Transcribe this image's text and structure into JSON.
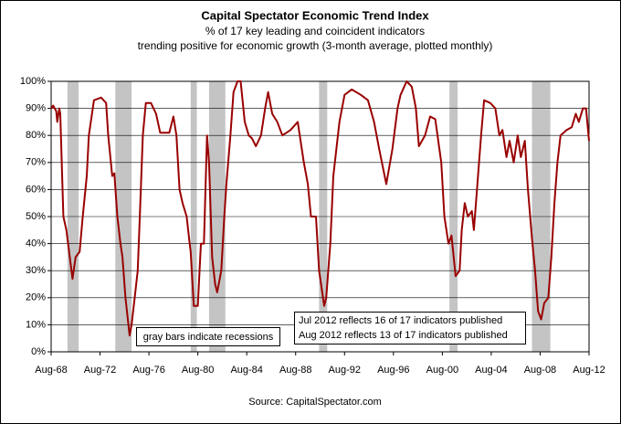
{
  "chart_data": {
    "type": "line",
    "title": "Capital Spectator Economic Trend Index",
    "subtitle": [
      "% of 17 key leading and coincident indicators",
      "trending positive for economic growth (3-month average, plotted monthly)"
    ],
    "source": "Source: CapitalSpectator.com",
    "annotations": [
      "gray bars indicate recessions",
      "Jul 2012 reflects 16 of 17 indicators published",
      "Aug 2012 reflects 13 of 17 indicators published"
    ],
    "color": "#990000",
    "recession_color": "#c4c4c4",
    "grid": true,
    "recessions": [
      [
        "1969-12",
        "1970-11"
      ],
      [
        "1973-11",
        "1975-03"
      ],
      [
        "1980-01",
        "1980-07"
      ],
      [
        "1981-07",
        "1982-11"
      ],
      [
        "1990-07",
        "1991-03"
      ],
      [
        "2001-03",
        "2001-11"
      ],
      [
        "2007-12",
        "2009-06"
      ]
    ],
    "x": [
      "1968-08",
      "1968-10",
      "1969-01",
      "1969-02",
      "1969-04",
      "1969-05",
      "1969-08",
      "1969-11",
      "1970-05",
      "1970-08",
      "1970-12",
      "1971-03",
      "1971-07",
      "1971-09",
      "1972-02",
      "1972-09",
      "1973-02",
      "1973-04",
      "1973-08",
      "1973-10",
      "1974-01",
      "1974-04",
      "1974-06",
      "1974-09",
      "1975-01",
      "1975-03",
      "1975-06",
      "1975-09",
      "1975-11",
      "1976-02",
      "1976-05",
      "1976-10",
      "1977-03",
      "1977-07",
      "1978-04",
      "1978-08",
      "1978-11",
      "1979-02",
      "1979-05",
      "1979-09",
      "1979-12",
      "1980-01",
      "1980-04",
      "1980-08",
      "1980-11",
      "1981-02",
      "1981-05",
      "1981-07",
      "1981-10",
      "1982-01",
      "1982-03",
      "1982-07",
      "1982-10",
      "1982-12",
      "1983-04",
      "1983-07",
      "1983-11",
      "1984-02",
      "1984-06",
      "1984-10",
      "1985-01",
      "1985-05",
      "1985-10",
      "1986-02",
      "1986-05",
      "1986-09",
      "1987-02",
      "1987-07",
      "1988-03",
      "1988-10",
      "1989-04",
      "1989-08",
      "1989-11",
      "1990-04",
      "1990-07",
      "1990-12",
      "1991-02",
      "1991-06",
      "1991-09",
      "1992-03",
      "1992-08",
      "1993-03",
      "1993-12",
      "1994-07",
      "1995-01",
      "1995-06",
      "1996-01",
      "1996-07",
      "1996-12",
      "1997-03",
      "1997-09",
      "1998-02",
      "1998-06",
      "1998-09",
      "1999-03",
      "1999-08",
      "2000-01",
      "2000-07",
      "2000-10",
      "2001-02",
      "2001-05",
      "2001-09",
      "2002-01",
      "2002-03",
      "2002-06",
      "2002-09",
      "2003-01",
      "2003-03",
      "2003-06",
      "2003-10",
      "2004-01",
      "2004-07",
      "2004-12",
      "2005-04",
      "2005-07",
      "2005-11",
      "2006-02",
      "2006-06",
      "2006-10",
      "2007-01",
      "2007-05",
      "2007-08",
      "2007-12",
      "2008-03",
      "2008-06",
      "2008-09",
      "2008-12",
      "2009-04",
      "2009-07",
      "2009-10",
      "2010-01",
      "2010-04",
      "2010-10",
      "2011-03",
      "2011-07",
      "2011-10",
      "2012-02",
      "2012-05",
      "2012-08"
    ],
    "values": [
      90,
      91,
      89,
      85,
      90,
      88,
      50,
      45,
      27,
      35,
      37,
      50,
      65,
      80,
      93,
      94,
      92,
      80,
      65,
      66,
      50,
      40,
      35,
      20,
      6,
      10,
      20,
      30,
      50,
      80,
      92,
      92,
      88,
      81,
      81,
      87,
      80,
      60,
      55,
      50,
      40,
      37,
      17,
      17,
      40,
      40,
      80,
      70,
      35,
      25,
      22,
      30,
      50,
      62,
      80,
      96,
      100,
      100,
      85,
      80,
      79,
      76,
      80,
      90,
      96,
      88,
      85,
      80,
      82,
      85,
      70,
      62,
      50,
      50,
      30,
      17,
      20,
      40,
      65,
      85,
      95,
      97,
      95,
      93,
      85,
      75,
      62,
      75,
      90,
      95,
      100,
      98,
      90,
      76,
      80,
      87,
      86,
      70,
      50,
      40,
      43,
      28,
      30,
      45,
      55,
      50,
      52,
      45,
      60,
      80,
      93,
      92,
      90,
      80,
      82,
      72,
      78,
      70,
      80,
      72,
      78,
      60,
      42,
      30,
      15,
      12,
      18,
      20,
      35,
      55,
      70,
      80,
      82,
      83,
      88,
      85,
      90,
      90,
      78
    ],
    "xlim": [
      "1968-08",
      "2012-08"
    ],
    "xticks": [
      {
        "value": "1968-08",
        "label": "Aug-68"
      },
      {
        "value": "1972-08",
        "label": "Aug-72"
      },
      {
        "value": "1976-08",
        "label": "Aug-76"
      },
      {
        "value": "1980-08",
        "label": "Aug-80"
      },
      {
        "value": "1984-08",
        "label": "Aug-84"
      },
      {
        "value": "1988-08",
        "label": "Aug-88"
      },
      {
        "value": "1992-08",
        "label": "Aug-92"
      },
      {
        "value": "1996-08",
        "label": "Aug-96"
      },
      {
        "value": "2000-08",
        "label": "Aug-00"
      },
      {
        "value": "2004-08",
        "label": "Aug-04"
      },
      {
        "value": "2008-08",
        "label": "Aug-08"
      },
      {
        "value": "2012-08",
        "label": "Aug-12"
      }
    ],
    "ylim": [
      0,
      100
    ],
    "yticks": [
      {
        "value": 0,
        "label": "0%"
      },
      {
        "value": 10,
        "label": "10%"
      },
      {
        "value": 20,
        "label": "20%"
      },
      {
        "value": 30,
        "label": "30%"
      },
      {
        "value": 40,
        "label": "40%"
      },
      {
        "value": 50,
        "label": "50%"
      },
      {
        "value": 60,
        "label": "60%"
      },
      {
        "value": 70,
        "label": "70%"
      },
      {
        "value": 80,
        "label": "80%"
      },
      {
        "value": 90,
        "label": "90%"
      },
      {
        "value": 100,
        "label": "100%"
      }
    ]
  }
}
